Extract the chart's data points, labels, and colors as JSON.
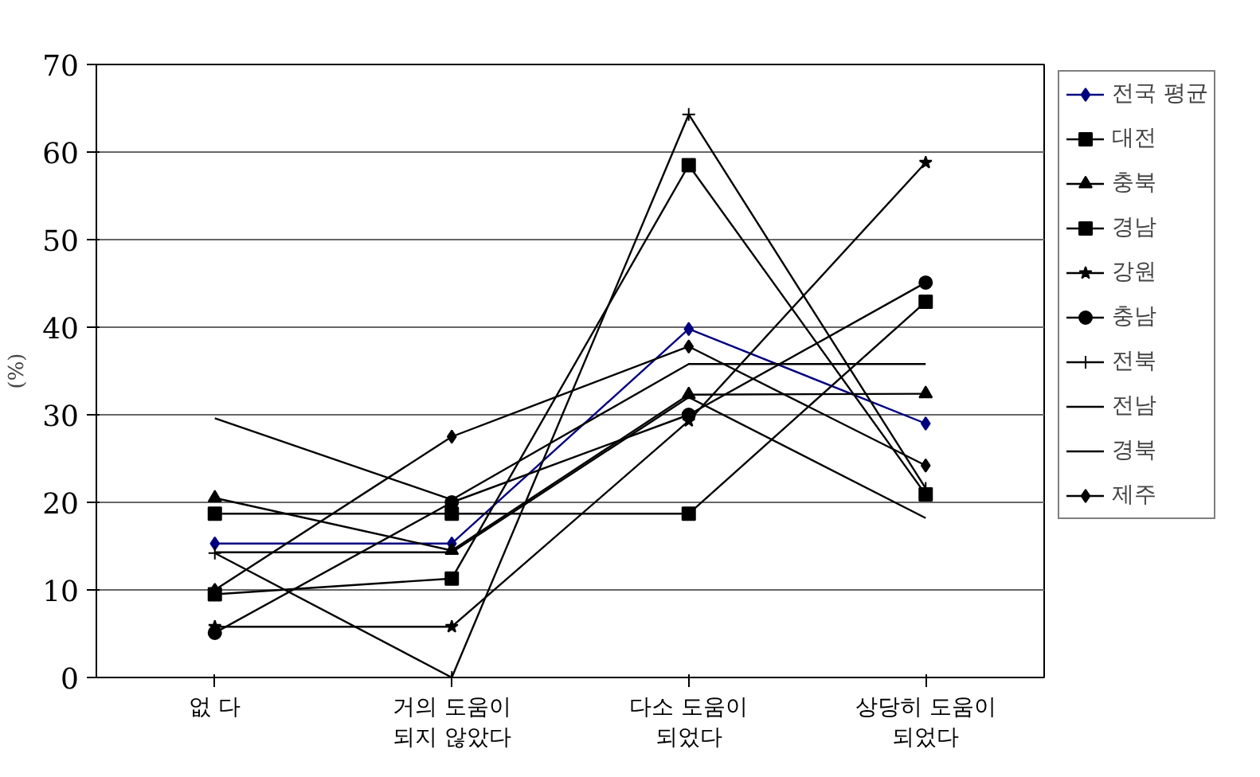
{
  "chart_data": {
    "type": "line",
    "ylabel": "(%)",
    "categories": [
      "없 다",
      "거의 도움이\n되지 않았다",
      "다소 도움이\n되었다",
      "상당히 도움이\n되었다"
    ],
    "ylim": [
      0,
      70
    ],
    "yticks": [
      0,
      10,
      20,
      30,
      40,
      50,
      60,
      70
    ],
    "grid": "y",
    "legend": "right",
    "series": [
      {
        "name": "전국 평균",
        "color": "#000080",
        "marker": "diamond",
        "values": [
          15.3,
          15.3,
          39.8,
          29.0
        ]
      },
      {
        "name": "대전",
        "color": "#000000",
        "marker": "square",
        "values": [
          9.5,
          11.3,
          58.5,
          20.9
        ]
      },
      {
        "name": "충북",
        "color": "#000000",
        "marker": "triangle",
        "values": [
          20.5,
          14.5,
          32.3,
          32.4
        ]
      },
      {
        "name": "경남",
        "color": "#000000",
        "marker": "square",
        "values": [
          18.7,
          18.7,
          18.7,
          42.9
        ]
      },
      {
        "name": "강원",
        "color": "#000000",
        "marker": "star",
        "values": [
          5.8,
          5.8,
          29.3,
          58.8
        ]
      },
      {
        "name": "충남",
        "color": "#000000",
        "marker": "circle",
        "values": [
          5.1,
          20.0,
          30.0,
          45.1
        ]
      },
      {
        "name": "전북",
        "color": "#000000",
        "marker": "cross",
        "values": [
          14.2,
          0,
          64.3,
          21.6
        ]
      },
      {
        "name": "전남",
        "color": "#000000",
        "marker": "none",
        "values": [
          29.6,
          20.3,
          35.8,
          35.8
        ]
      },
      {
        "name": "경북",
        "color": "#000000",
        "marker": "none",
        "values": [
          14.3,
          14.3,
          32.0,
          18.2
        ]
      },
      {
        "name": "제주",
        "color": "#000000",
        "marker": "diamond",
        "values": [
          10.0,
          27.5,
          37.8,
          24.2
        ]
      }
    ]
  }
}
